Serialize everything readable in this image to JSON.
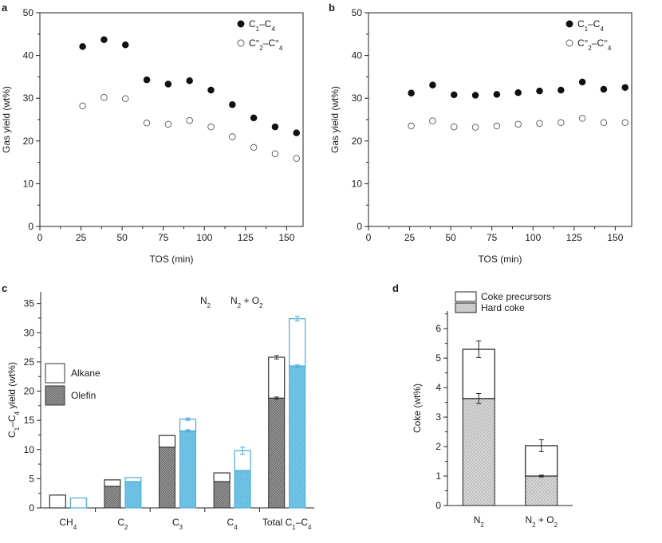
{
  "chart_data": [
    {
      "panel": "a",
      "type": "scatter",
      "xlabel": "TOS (min)",
      "ylabel": "Gas yield (wt%)",
      "xlim": [
        0,
        160
      ],
      "ylim": [
        0,
        50
      ],
      "xticks": [
        0,
        25,
        50,
        75,
        100,
        125,
        150
      ],
      "yticks": [
        0,
        10,
        20,
        30,
        40,
        50
      ],
      "legend_position": "top-right",
      "series": [
        {
          "name": "C1–C4",
          "label_main": "C",
          "label_sub1": "1",
          "label_dash": "–C",
          "label_sub2": "4",
          "label_sup": "",
          "marker": "filled",
          "x": [
            26,
            39,
            52,
            65,
            78,
            91,
            104,
            117,
            130,
            143,
            156
          ],
          "y": [
            42.1,
            43.7,
            42.5,
            34.3,
            33.3,
            34.1,
            31.9,
            28.5,
            25.4,
            23.3,
            21.9
          ]
        },
        {
          "name": "C2=–C4=",
          "label_main": "C",
          "label_sub1": "2",
          "label_dash": "–C",
          "label_sub2": "4",
          "label_sup": "=",
          "marker": "open",
          "x": [
            26,
            39,
            52,
            65,
            78,
            91,
            104,
            117,
            130,
            143,
            156
          ],
          "y": [
            28.2,
            30.2,
            29.9,
            24.2,
            23.9,
            24.8,
            23.3,
            21.0,
            18.5,
            17.0,
            15.9
          ]
        }
      ]
    },
    {
      "panel": "b",
      "type": "scatter",
      "xlabel": "TOS (min)",
      "ylabel": "Gas yield (wt%)",
      "xlim": [
        0,
        160
      ],
      "ylim": [
        0,
        50
      ],
      "xticks": [
        0,
        25,
        50,
        75,
        100,
        125,
        150
      ],
      "yticks": [
        0,
        10,
        20,
        30,
        40,
        50
      ],
      "legend_position": "top-right",
      "series": [
        {
          "name": "C1–C4",
          "label_main": "C",
          "label_sub1": "1",
          "label_dash": "–C",
          "label_sub2": "4",
          "label_sup": "",
          "marker": "filled",
          "x": [
            26,
            39,
            52,
            65,
            78,
            91,
            104,
            117,
            130,
            143,
            156
          ],
          "y": [
            31.2,
            33.1,
            30.8,
            30.7,
            30.9,
            31.3,
            31.7,
            31.9,
            33.8,
            32.1,
            32.5
          ]
        },
        {
          "name": "C2=–C4=",
          "label_main": "C",
          "label_sub1": "2",
          "label_dash": "–C",
          "label_sub2": "4",
          "label_sup": "=",
          "marker": "open",
          "x": [
            26,
            39,
            52,
            65,
            78,
            91,
            104,
            117,
            130,
            143,
            156
          ],
          "y": [
            23.5,
            24.7,
            23.3,
            23.2,
            23.5,
            23.9,
            24.1,
            24.3,
            25.3,
            24.3,
            24.3
          ]
        }
      ]
    },
    {
      "panel": "c",
      "type": "bar",
      "ylabel": "C1–C4 yield (wt%)",
      "ylabel_parts": {
        "main": "C",
        "sub1": "1",
        "mid": "–C",
        "sub2": "4",
        "rest": " yield (wt%)"
      },
      "ylim": [
        0,
        37
      ],
      "yticks": [
        0,
        5,
        10,
        15,
        20,
        25,
        30,
        35
      ],
      "categories": [
        "CH4",
        "C2",
        "C3",
        "C4",
        "Total C1–C4"
      ],
      "category_labels": [
        {
          "main": "CH",
          "sub": "4",
          "rest": "",
          "sub2": ""
        },
        {
          "main": "C",
          "sub": "2",
          "rest": "",
          "sub2": ""
        },
        {
          "main": "C",
          "sub": "3",
          "rest": "",
          "sub2": ""
        },
        {
          "main": "C",
          "sub": "4",
          "rest": "",
          "sub2": ""
        },
        {
          "main": "Total C",
          "sub": "1",
          "rest": "–C",
          "sub2": "4"
        }
      ],
      "conditions": [
        {
          "name": "N2",
          "label_main": "N",
          "label_sub": "2",
          "label_rest": "",
          "color": "#333333",
          "olefin": [
            0,
            3.7,
            10.4,
            4.5,
            18.8
          ],
          "total": [
            2.2,
            4.8,
            12.4,
            6.0,
            25.8
          ],
          "olefin_err": [
            0,
            0,
            0,
            0,
            0.2
          ],
          "total_err": [
            0,
            0,
            0,
            0,
            0.3
          ]
        },
        {
          "name": "N2 + O2",
          "label_main": "N",
          "label_sub": "2",
          "label_rest": " + O",
          "label_sub2": "2",
          "color": "#4aaad6",
          "olefin": [
            0,
            4.5,
            13.2,
            6.4,
            24.3
          ],
          "total": [
            1.7,
            5.2,
            15.2,
            9.8,
            32.4
          ],
          "olefin_err": [
            0,
            0,
            0.2,
            0,
            0.2
          ],
          "total_err": [
            0,
            0,
            0.2,
            0.6,
            0.4
          ]
        }
      ],
      "legend": [
        {
          "name": "Alkane",
          "fill": "open"
        },
        {
          "name": "Olefin",
          "fill": "hatched"
        }
      ]
    },
    {
      "panel": "d",
      "type": "bar",
      "ylabel": "Coke (wt%)",
      "ylim": [
        0,
        6.6
      ],
      "yticks": [
        0,
        1,
        2,
        3,
        4,
        5,
        6
      ],
      "categories": [
        "N2",
        "N2 + O2"
      ],
      "category_labels": [
        {
          "main": "N",
          "sub": "2",
          "rest": "",
          "sub2": ""
        },
        {
          "main": "N",
          "sub": "2",
          "rest": " + O",
          "sub2": "2"
        }
      ],
      "hard_coke": [
        3.63,
        1.0
      ],
      "total": [
        5.3,
        2.03
      ],
      "hard_err": [
        0.17,
        0.03
      ],
      "total_err": [
        0.28,
        0.2
      ],
      "legend": [
        {
          "name": "Coke precursors",
          "fill": "open"
        },
        {
          "name": "Hard coke",
          "fill": "dotted"
        }
      ]
    }
  ],
  "panel_letters": [
    "a",
    "b",
    "c",
    "d"
  ]
}
